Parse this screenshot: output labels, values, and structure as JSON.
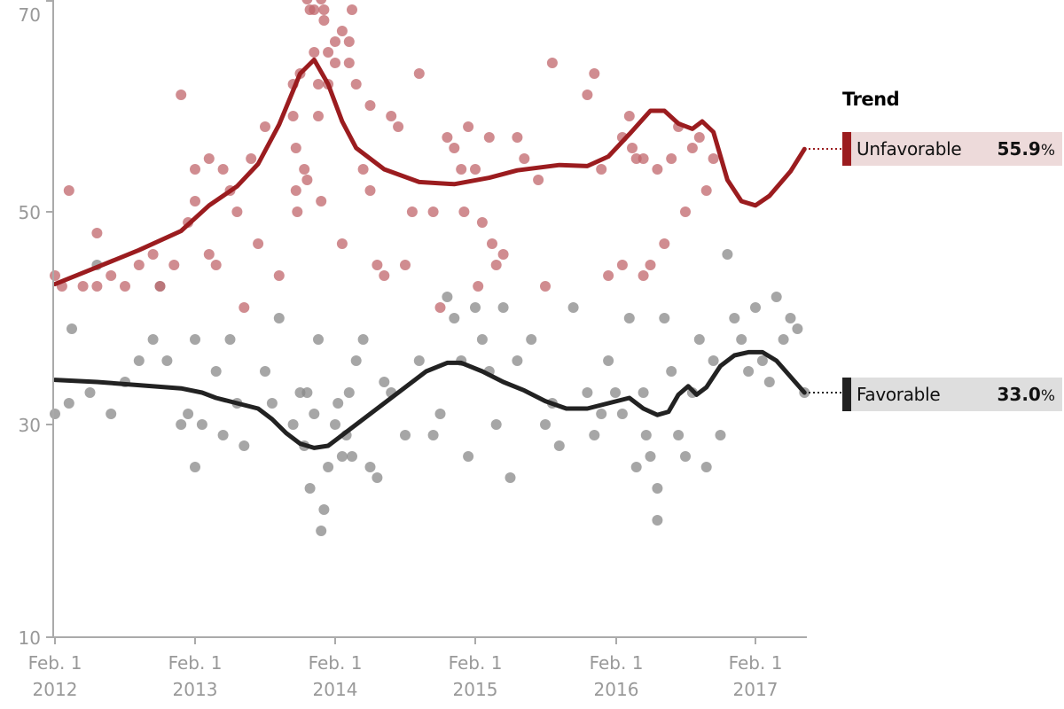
{
  "chart_data": {
    "type": "scatter",
    "title": "",
    "xlabel": "",
    "ylabel": "",
    "ylim": [
      10,
      70
    ],
    "xlim": [
      "2012-01-28",
      "2017-05-20"
    ],
    "grid": false,
    "y_ticks": [
      70,
      50,
      30,
      10
    ],
    "x_ticks": [
      {
        "line1": "Feb. 1",
        "line2": "2012"
      },
      {
        "line1": "Feb. 1",
        "line2": "2013"
      },
      {
        "line1": "Feb. 1",
        "line2": "2014"
      },
      {
        "line1": "Feb. 1",
        "line2": "2015"
      },
      {
        "line1": "Feb. 1",
        "line2": "2016"
      },
      {
        "line1": "Feb. 1",
        "line2": "2017"
      }
    ],
    "legend": {
      "title": "Trend",
      "position": "right",
      "entries": [
        {
          "name": "Unfavorable",
          "value": "55.9",
          "unit": "%",
          "color": "#9b1c1f",
          "bg": "#eddada"
        },
        {
          "name": "Favorable",
          "value": "33.0",
          "unit": "%",
          "color": "#222222",
          "bg": "#dedede"
        }
      ]
    },
    "series": [
      {
        "name": "Unfavorable",
        "color": "#9b1c1f",
        "point_color": "#c0656b",
        "trend": [
          [
            2012.0,
            43.2
          ],
          [
            2012.3,
            44.8
          ],
          [
            2012.6,
            46.4
          ],
          [
            2012.9,
            48.2
          ],
          [
            2013.1,
            50.6
          ],
          [
            2013.3,
            52.4
          ],
          [
            2013.45,
            54.5
          ],
          [
            2013.6,
            58.2
          ],
          [
            2013.75,
            63.0
          ],
          [
            2013.85,
            64.3
          ],
          [
            2013.95,
            62.0
          ],
          [
            2014.05,
            58.5
          ],
          [
            2014.15,
            56.0
          ],
          [
            2014.35,
            54.0
          ],
          [
            2014.6,
            52.8
          ],
          [
            2014.85,
            52.6
          ],
          [
            2015.1,
            53.2
          ],
          [
            2015.3,
            53.9
          ],
          [
            2015.6,
            54.4
          ],
          [
            2015.8,
            54.3
          ],
          [
            2015.95,
            55.2
          ],
          [
            2016.1,
            57.3
          ],
          [
            2016.25,
            59.5
          ],
          [
            2016.35,
            59.5
          ],
          [
            2016.45,
            58.3
          ],
          [
            2016.55,
            57.8
          ],
          [
            2016.62,
            58.5
          ],
          [
            2016.7,
            57.5
          ],
          [
            2016.8,
            53.0
          ],
          [
            2016.9,
            51.0
          ],
          [
            2017.0,
            50.6
          ],
          [
            2017.1,
            51.5
          ],
          [
            2017.25,
            53.8
          ],
          [
            2017.35,
            55.9
          ]
        ],
        "points": [
          [
            2012.0,
            44
          ],
          [
            2012.05,
            43
          ],
          [
            2012.1,
            52
          ],
          [
            2012.2,
            43
          ],
          [
            2012.3,
            43
          ],
          [
            2012.3,
            48
          ],
          [
            2012.4,
            44
          ],
          [
            2012.5,
            43
          ],
          [
            2012.6,
            45
          ],
          [
            2012.7,
            46
          ],
          [
            2012.75,
            43
          ],
          [
            2012.85,
            45
          ],
          [
            2012.9,
            61
          ],
          [
            2012.95,
            49
          ],
          [
            2013.0,
            51
          ],
          [
            2013.0,
            54
          ],
          [
            2013.1,
            55
          ],
          [
            2013.1,
            46
          ],
          [
            2013.15,
            45
          ],
          [
            2013.2,
            54
          ],
          [
            2013.25,
            52
          ],
          [
            2013.3,
            50
          ],
          [
            2013.35,
            41
          ],
          [
            2013.4,
            55
          ],
          [
            2013.45,
            47
          ],
          [
            2013.5,
            58
          ],
          [
            2013.6,
            44
          ],
          [
            2013.7,
            62
          ],
          [
            2013.7,
            59
          ],
          [
            2013.72,
            56
          ],
          [
            2013.72,
            52
          ],
          [
            2013.73,
            50
          ],
          [
            2013.75,
            63
          ],
          [
            2013.78,
            54
          ],
          [
            2013.8,
            53
          ],
          [
            2013.8,
            70
          ],
          [
            2013.82,
            69
          ],
          [
            2013.85,
            65
          ],
          [
            2013.85,
            69
          ],
          [
            2013.88,
            62
          ],
          [
            2013.88,
            59
          ],
          [
            2013.9,
            51
          ],
          [
            2013.9,
            70
          ],
          [
            2013.92,
            69
          ],
          [
            2013.92,
            68
          ],
          [
            2013.95,
            65
          ],
          [
            2013.95,
            62
          ],
          [
            2014.0,
            66
          ],
          [
            2014.0,
            64
          ],
          [
            2014.05,
            67
          ],
          [
            2014.05,
            47
          ],
          [
            2014.1,
            66
          ],
          [
            2014.1,
            64
          ],
          [
            2014.12,
            69
          ],
          [
            2014.15,
            62
          ],
          [
            2014.2,
            54
          ],
          [
            2014.25,
            60
          ],
          [
            2014.25,
            52
          ],
          [
            2014.3,
            45
          ],
          [
            2014.35,
            44
          ],
          [
            2014.4,
            59
          ],
          [
            2014.45,
            58
          ],
          [
            2014.5,
            45
          ],
          [
            2014.55,
            50
          ],
          [
            2014.6,
            63
          ],
          [
            2014.7,
            50
          ],
          [
            2014.75,
            41
          ],
          [
            2014.8,
            57
          ],
          [
            2014.85,
            56
          ],
          [
            2014.9,
            54
          ],
          [
            2014.92,
            50
          ],
          [
            2014.95,
            58
          ],
          [
            2015.0,
            54
          ],
          [
            2015.02,
            43
          ],
          [
            2015.05,
            49
          ],
          [
            2015.1,
            57
          ],
          [
            2015.12,
            47
          ],
          [
            2015.15,
            45
          ],
          [
            2015.2,
            46
          ],
          [
            2015.3,
            57
          ],
          [
            2015.35,
            55
          ],
          [
            2015.45,
            53
          ],
          [
            2015.5,
            43
          ],
          [
            2015.55,
            64
          ],
          [
            2015.8,
            61
          ],
          [
            2015.85,
            63
          ],
          [
            2015.9,
            54
          ],
          [
            2015.95,
            44
          ],
          [
            2016.05,
            45
          ],
          [
            2016.05,
            57
          ],
          [
            2016.1,
            59
          ],
          [
            2016.12,
            56
          ],
          [
            2016.15,
            55
          ],
          [
            2016.2,
            55
          ],
          [
            2016.2,
            44
          ],
          [
            2016.25,
            45
          ],
          [
            2016.3,
            54
          ],
          [
            2016.35,
            47
          ],
          [
            2016.4,
            55
          ],
          [
            2016.45,
            58
          ],
          [
            2016.5,
            50
          ],
          [
            2016.55,
            56
          ],
          [
            2016.6,
            57
          ],
          [
            2016.65,
            52
          ],
          [
            2016.7,
            55
          ]
        ],
        "last_value": 55.9
      },
      {
        "name": "Favorable",
        "color": "#222222",
        "point_color": "#888888",
        "trend": [
          [
            2012.0,
            34.2
          ],
          [
            2012.3,
            34.0
          ],
          [
            2012.6,
            33.7
          ],
          [
            2012.9,
            33.4
          ],
          [
            2013.05,
            33.0
          ],
          [
            2013.15,
            32.5
          ],
          [
            2013.3,
            32.0
          ],
          [
            2013.45,
            31.5
          ],
          [
            2013.55,
            30.5
          ],
          [
            2013.65,
            29.2
          ],
          [
            2013.75,
            28.2
          ],
          [
            2013.85,
            27.8
          ],
          [
            2013.95,
            28.0
          ],
          [
            2014.05,
            29.0
          ],
          [
            2014.2,
            30.5
          ],
          [
            2014.35,
            32.0
          ],
          [
            2014.5,
            33.5
          ],
          [
            2014.65,
            35.0
          ],
          [
            2014.8,
            35.8
          ],
          [
            2014.9,
            35.8
          ],
          [
            2015.05,
            35.0
          ],
          [
            2015.2,
            34.0
          ],
          [
            2015.35,
            33.2
          ],
          [
            2015.5,
            32.2
          ],
          [
            2015.65,
            31.5
          ],
          [
            2015.8,
            31.5
          ],
          [
            2015.95,
            32.0
          ],
          [
            2016.1,
            32.5
          ],
          [
            2016.2,
            31.5
          ],
          [
            2016.3,
            30.9
          ],
          [
            2016.38,
            31.2
          ],
          [
            2016.45,
            32.8
          ],
          [
            2016.52,
            33.6
          ],
          [
            2016.58,
            32.8
          ],
          [
            2016.65,
            33.5
          ],
          [
            2016.75,
            35.5
          ],
          [
            2016.85,
            36.5
          ],
          [
            2016.95,
            36.8
          ],
          [
            2017.05,
            36.8
          ],
          [
            2017.15,
            36.0
          ],
          [
            2017.25,
            34.5
          ],
          [
            2017.35,
            33.0
          ]
        ],
        "points": [
          [
            2012.0,
            31
          ],
          [
            2012.1,
            32
          ],
          [
            2012.12,
            39
          ],
          [
            2012.25,
            33
          ],
          [
            2012.3,
            45
          ],
          [
            2012.4,
            31
          ],
          [
            2012.5,
            34
          ],
          [
            2012.6,
            36
          ],
          [
            2012.7,
            38
          ],
          [
            2012.75,
            43
          ],
          [
            2012.8,
            36
          ],
          [
            2012.9,
            30
          ],
          [
            2012.95,
            31
          ],
          [
            2013.0,
            38
          ],
          [
            2013.0,
            26
          ],
          [
            2013.05,
            30
          ],
          [
            2013.15,
            35
          ],
          [
            2013.2,
            29
          ],
          [
            2013.25,
            38
          ],
          [
            2013.3,
            32
          ],
          [
            2013.35,
            28
          ],
          [
            2013.5,
            35
          ],
          [
            2013.55,
            32
          ],
          [
            2013.6,
            40
          ],
          [
            2013.7,
            30
          ],
          [
            2013.75,
            33
          ],
          [
            2013.78,
            28
          ],
          [
            2013.8,
            33
          ],
          [
            2013.82,
            24
          ],
          [
            2013.85,
            31
          ],
          [
            2013.88,
            38
          ],
          [
            2013.9,
            20
          ],
          [
            2013.92,
            22
          ],
          [
            2013.95,
            26
          ],
          [
            2014.0,
            30
          ],
          [
            2014.02,
            32
          ],
          [
            2014.05,
            27
          ],
          [
            2014.08,
            29
          ],
          [
            2014.1,
            33
          ],
          [
            2014.12,
            27
          ],
          [
            2014.15,
            36
          ],
          [
            2014.2,
            38
          ],
          [
            2014.25,
            26
          ],
          [
            2014.3,
            25
          ],
          [
            2014.35,
            34
          ],
          [
            2014.4,
            33
          ],
          [
            2014.5,
            29
          ],
          [
            2014.6,
            36
          ],
          [
            2014.7,
            29
          ],
          [
            2014.75,
            31
          ],
          [
            2014.8,
            42
          ],
          [
            2014.85,
            40
          ],
          [
            2014.9,
            36
          ],
          [
            2014.95,
            27
          ],
          [
            2015.0,
            41
          ],
          [
            2015.05,
            38
          ],
          [
            2015.1,
            35
          ],
          [
            2015.15,
            30
          ],
          [
            2015.2,
            41
          ],
          [
            2015.25,
            25
          ],
          [
            2015.3,
            36
          ],
          [
            2015.4,
            38
          ],
          [
            2015.5,
            30
          ],
          [
            2015.55,
            32
          ],
          [
            2015.6,
            28
          ],
          [
            2015.7,
            41
          ],
          [
            2015.8,
            33
          ],
          [
            2015.85,
            29
          ],
          [
            2015.9,
            31
          ],
          [
            2015.95,
            36
          ],
          [
            2016.0,
            33
          ],
          [
            2016.05,
            31
          ],
          [
            2016.1,
            40
          ],
          [
            2016.15,
            26
          ],
          [
            2016.2,
            33
          ],
          [
            2016.22,
            29
          ],
          [
            2016.25,
            27
          ],
          [
            2016.3,
            24
          ],
          [
            2016.3,
            21
          ],
          [
            2016.35,
            40
          ],
          [
            2016.4,
            35
          ],
          [
            2016.45,
            29
          ],
          [
            2016.5,
            27
          ],
          [
            2016.55,
            33
          ],
          [
            2016.6,
            38
          ],
          [
            2016.65,
            26
          ],
          [
            2016.7,
            36
          ],
          [
            2016.75,
            29
          ],
          [
            2016.8,
            46
          ],
          [
            2016.85,
            40
          ],
          [
            2016.9,
            38
          ],
          [
            2016.95,
            35
          ],
          [
            2017.0,
            41
          ],
          [
            2017.05,
            36
          ],
          [
            2017.1,
            34
          ],
          [
            2017.15,
            42
          ],
          [
            2017.2,
            38
          ],
          [
            2017.25,
            40
          ],
          [
            2017.3,
            39
          ],
          [
            2017.35,
            33
          ]
        ],
        "last_value": 33.0
      }
    ]
  },
  "legend": {
    "title": "Trend",
    "unfavorable": {
      "label": "Unfavorable",
      "value": "55.9",
      "unit": "%"
    },
    "favorable": {
      "label": "Favorable",
      "value": "33.0",
      "unit": "%"
    }
  },
  "axes": {
    "y_labels": [
      "70",
      "50",
      "30",
      "10"
    ],
    "x_labels": [
      {
        "month": "Feb. 1",
        "year": "2012"
      },
      {
        "month": "Feb. 1",
        "year": "2013"
      },
      {
        "month": "Feb. 1",
        "year": "2014"
      },
      {
        "month": "Feb. 1",
        "year": "2015"
      },
      {
        "month": "Feb. 1",
        "year": "2016"
      },
      {
        "month": "Feb. 1",
        "year": "2017"
      }
    ]
  }
}
